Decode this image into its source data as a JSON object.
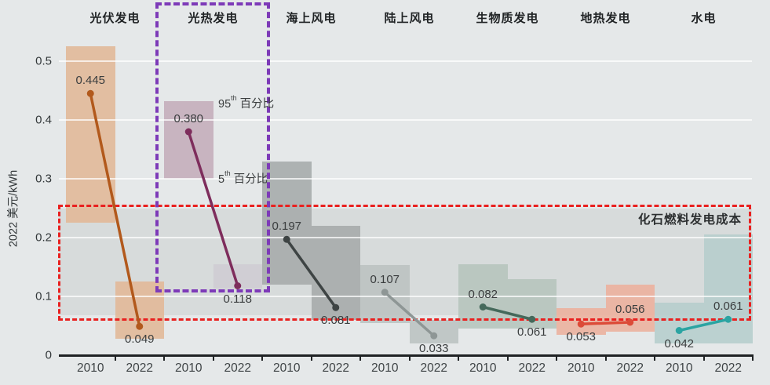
{
  "chart_data": {
    "type": "dumbbell-range",
    "title": "",
    "ylabel": "2022 美元/kWh",
    "ylim": [
      0,
      0.55
    ],
    "grid": true,
    "yticks": [
      {
        "v": 0.0,
        "label": "0"
      },
      {
        "v": 0.1,
        "label": "0.1"
      },
      {
        "v": 0.2,
        "label": "0.2"
      },
      {
        "v": 0.3,
        "label": "0.3"
      },
      {
        "v": 0.4,
        "label": "0.4"
      },
      {
        "v": 0.5,
        "label": "0.5"
      }
    ],
    "years": [
      "2010",
      "2022"
    ],
    "fossil_band": {
      "label": "化石燃料发电成本",
      "band_range": [
        0.068,
        0.25
      ],
      "band_color": "#d7dbdb",
      "box_range": [
        0.067,
        0.256
      ],
      "box_color": "#e9201f"
    },
    "highlight": {
      "tech": "光热发电",
      "color": "#7d3ab8"
    },
    "annotations": {
      "p95": {
        "num": "95",
        "sup": "th",
        "text": "百分比"
      },
      "p5": {
        "num": "5",
        "sup": "th",
        "text": "百分比"
      }
    },
    "technologies": [
      {
        "name": "光伏发电",
        "bar_color": "#e2ba9a",
        "line_color": "#b2591c",
        "points": [
          {
            "year": "2010",
            "value": 0.445,
            "display": "0.445",
            "range": [
              0.225,
              0.525
            ],
            "label_side": "above"
          },
          {
            "year": "2022",
            "value": 0.049,
            "display": "0.049",
            "range": [
              0.028,
              0.125
            ],
            "label_side": "below"
          }
        ]
      },
      {
        "name": "光热发电",
        "bar_color": "#c6afbc",
        "line_color": "#7e2d5c",
        "points": [
          {
            "year": "2010",
            "value": 0.38,
            "display": "0.380",
            "range": [
              0.3,
              0.432
            ],
            "label_side": "above"
          },
          {
            "year": "2022",
            "value": 0.118,
            "display": "0.118",
            "range": [
              0.113,
              0.155
            ],
            "label_side": "below",
            "bar_color": "#cbc3ce",
            "bar_opacity": 0.55
          }
        ]
      },
      {
        "name": "海上风电",
        "bar_color": "#a8adad",
        "line_color": "#3e4444",
        "points": [
          {
            "year": "2010",
            "value": 0.197,
            "display": "0.197",
            "range": [
              0.12,
              0.33
            ],
            "label_side": "above"
          },
          {
            "year": "2022",
            "value": 0.081,
            "display": "0.081",
            "range": [
              0.06,
              0.22
            ],
            "label_side": "below"
          }
        ]
      },
      {
        "name": "陆上风电",
        "bar_color": "#bdc3c2",
        "line_color": "#8e9695",
        "points": [
          {
            "year": "2010",
            "value": 0.107,
            "display": "0.107",
            "range": [
              0.055,
              0.153
            ],
            "label_side": "above"
          },
          {
            "year": "2022",
            "value": 0.033,
            "display": "0.033",
            "range": [
              0.02,
              0.06
            ],
            "label_side": "below"
          }
        ]
      },
      {
        "name": "生物质发电",
        "bar_color": "#b7c6be",
        "line_color": "#45695b",
        "points": [
          {
            "year": "2010",
            "value": 0.082,
            "display": "0.082",
            "range": [
              0.045,
              0.155
            ],
            "label_side": "above"
          },
          {
            "year": "2022",
            "value": 0.061,
            "display": "0.061",
            "range": [
              0.045,
              0.13
            ],
            "label_side": "below"
          }
        ]
      },
      {
        "name": "地热发电",
        "bar_color": "#ecb2a0",
        "line_color": "#dc4b38",
        "points": [
          {
            "year": "2010",
            "value": 0.053,
            "display": "0.053",
            "range": [
              0.035,
              0.08
            ],
            "label_side": "below"
          },
          {
            "year": "2022",
            "value": 0.056,
            "display": "0.056",
            "range": [
              0.04,
              0.12
            ],
            "label_side": "above"
          }
        ]
      },
      {
        "name": "水电",
        "bar_color": "#b7cecd",
        "line_color": "#2ba4a2",
        "points": [
          {
            "year": "2010",
            "value": 0.042,
            "display": "0.042",
            "range": [
              0.02,
              0.09
            ],
            "label_side": "below"
          },
          {
            "year": "2022",
            "value": 0.061,
            "display": "0.061",
            "range": [
              0.02,
              0.205
            ],
            "label_side": "above"
          }
        ]
      }
    ]
  }
}
